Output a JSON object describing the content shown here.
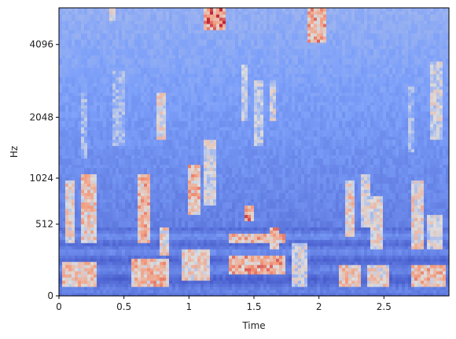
{
  "chart_data": {
    "type": "heatmap",
    "title": "",
    "xlabel": "Time",
    "ylabel": "Hz",
    "xlim": [
      0,
      3.0
    ],
    "y_scale": "mel",
    "x_ticks": [
      {
        "value": 0,
        "label": "0"
      },
      {
        "value": 0.5,
        "label": "0.5"
      },
      {
        "value": 1,
        "label": "1"
      },
      {
        "value": 1.5,
        "label": "1.5"
      },
      {
        "value": 2,
        "label": "2"
      },
      {
        "value": 2.5,
        "label": "2.5"
      }
    ],
    "y_ticks": [
      {
        "value": 0,
        "label": "0"
      },
      {
        "value": 512,
        "label": "512"
      },
      {
        "value": 1024,
        "label": "1024"
      },
      {
        "value": 2048,
        "label": "2048"
      },
      {
        "value": 4096,
        "label": "4096"
      }
    ],
    "colormap": "coolwarm",
    "colors": {
      "low": "#3b4cc0",
      "mid": "#dddddd",
      "high": "#b40426"
    }
  }
}
